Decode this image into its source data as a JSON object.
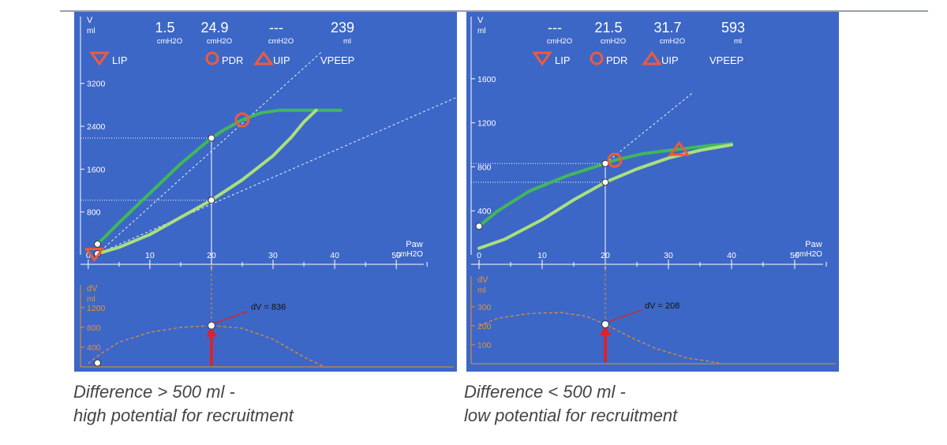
{
  "captions": {
    "left": {
      "line1": "Difference > 500 ml -",
      "line2": "high potential for recruitment"
    },
    "right": {
      "line1": "Difference < 500 ml -",
      "line2": "low potential for recruitment"
    }
  },
  "colors": {
    "panel": "#3d67c6",
    "axis": "#ffffff",
    "inflation": "#3fb85a",
    "deflation": "#a8e07d",
    "marker": "#f05a3a",
    "dv_axis": "#e8922a",
    "arrow": "#e0202a",
    "dv_line": "#c23030"
  },
  "chart_data": [
    {
      "type": "line",
      "panel": "left",
      "header": {
        "values": [
          "1.5",
          "24.9",
          "---",
          "239"
        ],
        "units": [
          "cmH2O",
          "cmH2O",
          "cmH2O",
          "ml"
        ],
        "markers": [
          "LIP",
          "PDR",
          "UIP",
          "VPEEP"
        ]
      },
      "yaxis": {
        "label": "V",
        "unit": "ml",
        "ticks": [
          "800",
          "1600",
          "2400",
          "3200"
        ],
        "ylim": [
          0,
          3800
        ]
      },
      "xaxis": {
        "label": "Paw",
        "unit": "cmH2O",
        "ticks": [
          "0",
          "10",
          "20",
          "30",
          "40",
          "50"
        ],
        "xlim": [
          -1,
          56
        ]
      },
      "series": [
        {
          "role": "inflation",
          "x": [
            1.5,
            5,
            10,
            15,
            20,
            22,
            25,
            28,
            31,
            36,
            41
          ],
          "y": [
            200,
            600,
            1150,
            1700,
            2180,
            2330,
            2520,
            2650,
            2700,
            2700,
            2700
          ]
        },
        {
          "role": "deflation",
          "x": [
            1.5,
            5,
            10,
            15,
            20,
            25,
            30,
            33,
            35,
            37
          ],
          "y": [
            20,
            140,
            380,
            700,
            1020,
            1400,
            1850,
            2200,
            2480,
            2700
          ]
        }
      ],
      "guides": [
        {
          "x1": 1.5,
          "y1": 20,
          "x2": 38,
          "y2": 3800
        },
        {
          "x1": 1.5,
          "y1": 20,
          "x2": 60,
          "y2": 2950
        }
      ],
      "points": [
        {
          "x": 1.5,
          "y": 200
        },
        {
          "x": 1.5,
          "y": 20
        },
        {
          "x": 20,
          "y": 2180
        },
        {
          "x": 20,
          "y": 1020
        }
      ],
      "marker_positions": {
        "LIP": {
          "x": 1.0,
          "y": 20
        },
        "PDR": {
          "x": 25,
          "y": 2520
        }
      },
      "dv": {
        "ylabel": "dV",
        "unit": "ml",
        "ticks": [
          "400",
          "800",
          "1200"
        ],
        "ylim": [
          0,
          1500
        ],
        "x": [
          0,
          2,
          5,
          10,
          15,
          20,
          25,
          30,
          35,
          38
        ],
        "values": [
          70,
          260,
          500,
          700,
          800,
          836,
          780,
          560,
          200,
          20
        ],
        "annotation": "dV = 836",
        "peak": {
          "x": 20,
          "y": 836
        },
        "start": {
          "x": 1.5,
          "y": 80
        }
      }
    },
    {
      "type": "line",
      "panel": "right",
      "header": {
        "values": [
          "---",
          "21.5",
          "31.7",
          "593"
        ],
        "units": [
          "cmH2O",
          "cmH2O",
          "cmH2O",
          "ml"
        ],
        "markers": [
          "LIP",
          "PDR",
          "UIP",
          "VPEEP"
        ]
      },
      "yaxis": {
        "label": "V",
        "unit": "ml",
        "ticks": [
          "400",
          "800",
          "1200",
          "1600"
        ],
        "ylim": [
          0,
          1850
        ]
      },
      "xaxis": {
        "label": "Paw",
        "unit": "cmH2O",
        "ticks": [
          "0",
          "10",
          "20",
          "30",
          "40",
          "50"
        ],
        "xlim": [
          -1,
          56
        ]
      },
      "series": [
        {
          "role": "inflation",
          "x": [
            0,
            3,
            8,
            14,
            20,
            21.5,
            26,
            31.7,
            36,
            40
          ],
          "y": [
            260,
            400,
            580,
            720,
            830,
            860,
            920,
            960,
            990,
            1010
          ]
        },
        {
          "role": "deflation",
          "x": [
            0,
            4,
            10,
            15,
            20,
            25,
            30,
            35,
            40
          ],
          "y": [
            60,
            140,
            320,
            500,
            660,
            780,
            880,
            950,
            1000
          ]
        }
      ],
      "guides": [
        {
          "x1": 20,
          "y1": 830,
          "x2": 34,
          "y2": 1480
        }
      ],
      "points": [
        {
          "x": 0,
          "y": 260
        },
        {
          "x": 20,
          "y": 830
        },
        {
          "x": 20,
          "y": 660
        }
      ],
      "marker_positions": {
        "PDR": {
          "x": 21.5,
          "y": 860
        },
        "UIP": {
          "x": 31.7,
          "y": 960
        }
      },
      "dv": {
        "ylabel": "dV",
        "unit": "ml",
        "ticks": [
          "100",
          "200",
          "300"
        ],
        "ylim": [
          0,
          420
        ],
        "x": [
          0,
          3,
          8,
          13,
          17,
          20,
          24,
          28,
          33,
          38
        ],
        "values": [
          200,
          240,
          265,
          270,
          250,
          208,
          140,
          80,
          30,
          5
        ],
        "annotation": "dV = 208",
        "peak": {
          "x": 20,
          "y": 208
        }
      }
    }
  ]
}
